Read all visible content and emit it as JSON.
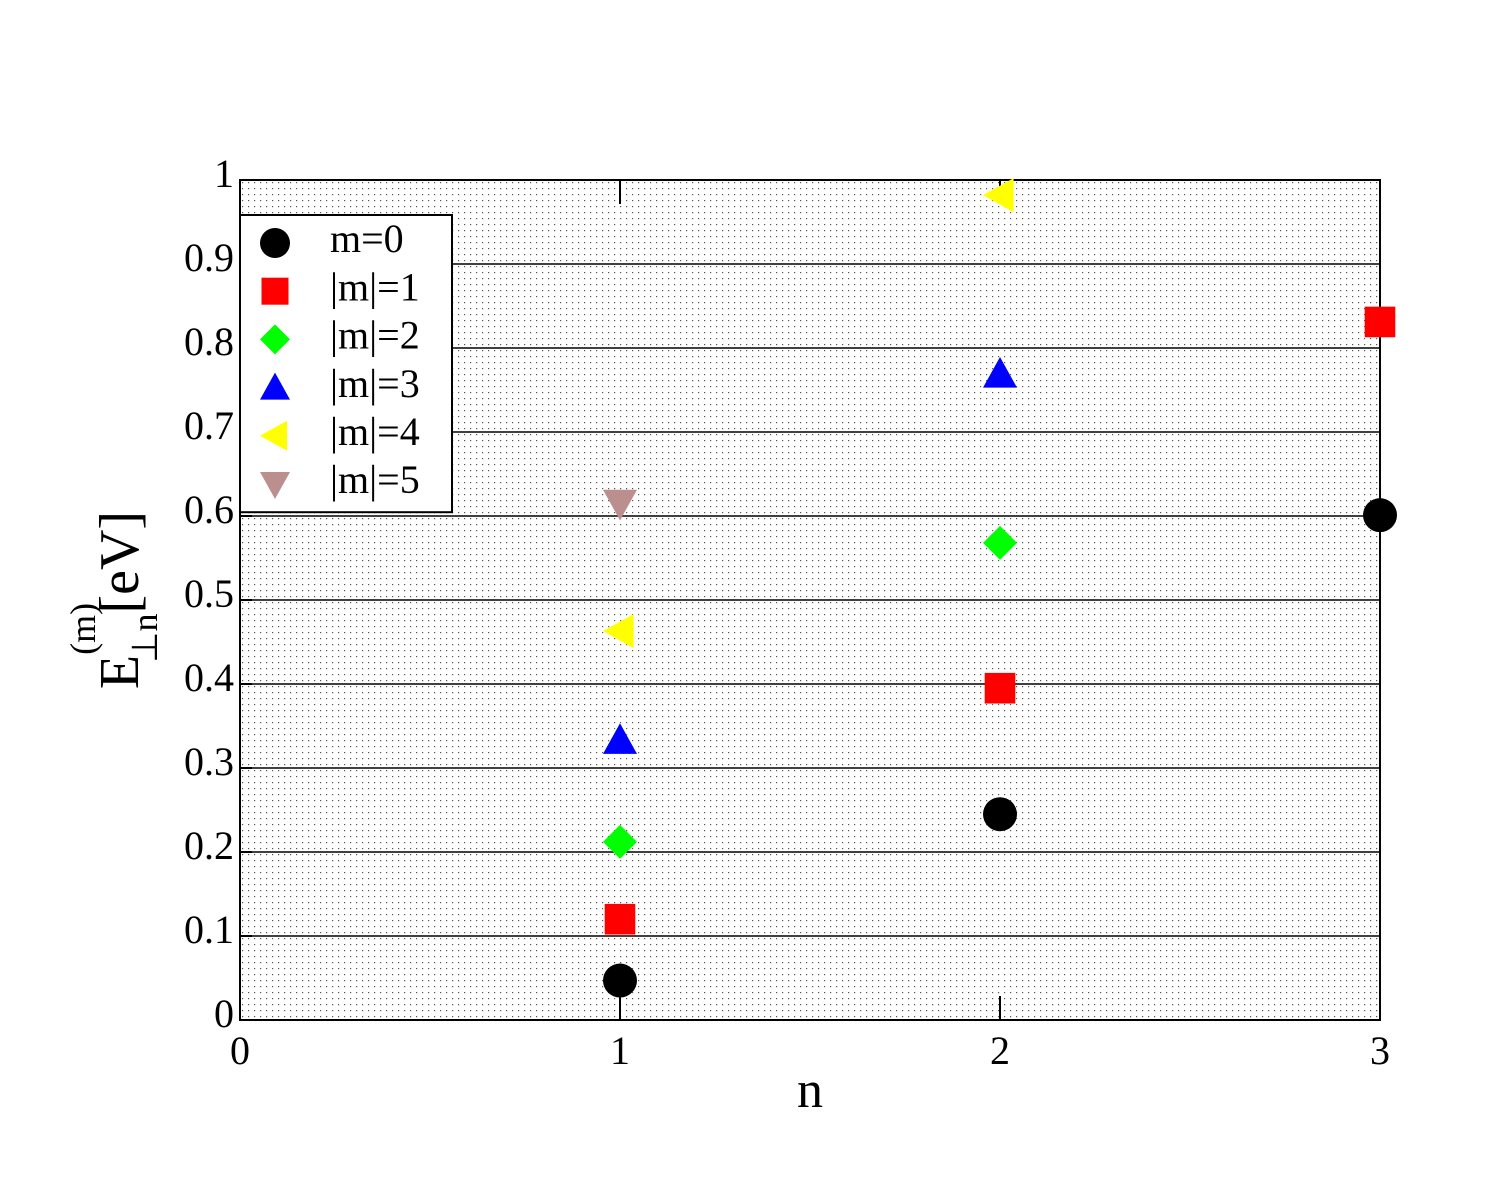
{
  "chart_data": {
    "type": "scatter",
    "x_label": "n",
    "y_label": {
      "main": "E",
      "sup": "(m)",
      "sub": "⊥n",
      "unit": "[eV]"
    },
    "xlim": [
      0,
      3
    ],
    "xticks": [
      0,
      1,
      2,
      3
    ],
    "ylim": [
      0,
      1
    ],
    "yticks": [
      0,
      0.1,
      0.2,
      0.3,
      0.4,
      0.5,
      0.6,
      0.7,
      0.8,
      0.9,
      1
    ],
    "grid": true,
    "legend": "upper-left",
    "series": [
      {
        "name": "m=0",
        "color": "#000000",
        "marker": "circle",
        "x": [
          1,
          2,
          3
        ],
        "values": [
          0.047,
          0.245,
          0.601
        ]
      },
      {
        "name": "|m|=1",
        "color": "#ff0000",
        "marker": "square",
        "x": [
          1,
          2,
          3
        ],
        "values": [
          0.12,
          0.395,
          0.831
        ]
      },
      {
        "name": "|m|=2",
        "color": "#00ff00",
        "marker": "diamond",
        "x": [
          1,
          2
        ],
        "values": [
          0.212,
          0.568
        ]
      },
      {
        "name": "|m|=3",
        "color": "#0000ff",
        "marker": "triangle-up",
        "x": [
          1,
          2
        ],
        "values": [
          0.333,
          0.769
        ]
      },
      {
        "name": "|m|=4",
        "color": "#ffff00",
        "marker": "triangle-left",
        "x": [
          1,
          2
        ],
        "values": [
          0.463,
          0.982
        ]
      },
      {
        "name": "|m|=5",
        "color": "#bc8f8f",
        "marker": "triangle-down",
        "x": [
          1
        ],
        "values": [
          0.615
        ]
      }
    ]
  }
}
